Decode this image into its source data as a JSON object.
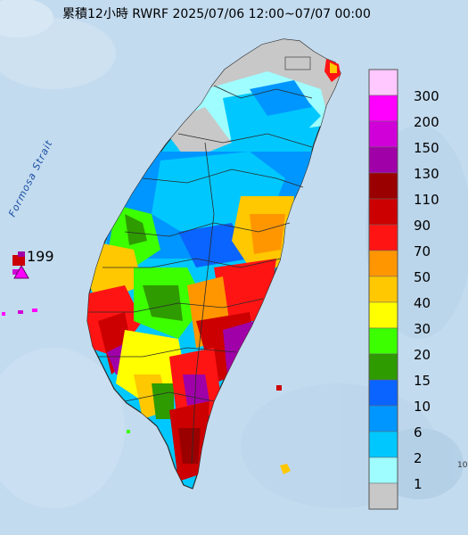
{
  "title": "累積12小時 RWRF 2025/07/06 12:00~07/07 00:00",
  "sea_label": "Formosa Strait",
  "max_marker_value": "199",
  "corner_label": "10",
  "legend": {
    "levels": [
      {
        "label": "300",
        "color": "#ffc8ff"
      },
      {
        "label": "200",
        "color": "#ff00ff"
      },
      {
        "label": "150",
        "color": "#d000d8"
      },
      {
        "label": "130",
        "color": "#a000a8"
      },
      {
        "label": "110",
        "color": "#9a0000"
      },
      {
        "label": "90",
        "color": "#cc0000"
      },
      {
        "label": "70",
        "color": "#ff1414"
      },
      {
        "label": "50",
        "color": "#ff9600"
      },
      {
        "label": "40",
        "color": "#ffc800"
      },
      {
        "label": "30",
        "color": "#ffff00"
      },
      {
        "label": "20",
        "color": "#3cff00"
      },
      {
        "label": "15",
        "color": "#2e9b00"
      },
      {
        "label": "10",
        "color": "#0a64ff"
      },
      {
        "label": "6",
        "color": "#0096ff"
      },
      {
        "label": "2",
        "color": "#00c8ff"
      },
      {
        "label": "1",
        "color": "#9ffcff"
      },
      {
        "label": "",
        "color": "#c8c8c8"
      }
    ]
  },
  "colors": {
    "sea": "#c3dbef",
    "border": "#2a2a2a"
  }
}
